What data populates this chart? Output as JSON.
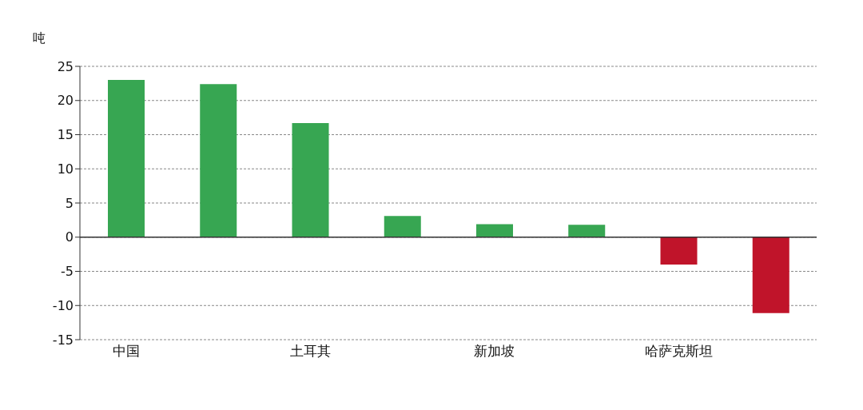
{
  "chart_data": {
    "type": "bar",
    "ylabel": "吨",
    "categories": [
      "中国",
      null,
      "土耳其",
      null,
      "新加坡",
      null,
      "哈萨克斯坦",
      null
    ],
    "values": [
      23,
      22.4,
      16.7,
      3.1,
      1.9,
      1.8,
      -4.0,
      -11.1
    ],
    "colors": [
      "#37a652",
      "#37a652",
      "#37a652",
      "#37a652",
      "#37a652",
      "#37a652",
      "#c0142a",
      "#c0142a"
    ],
    "ylim": [
      -15,
      25
    ],
    "yticks": [
      -15,
      -10,
      -5,
      0,
      5,
      10,
      15,
      20,
      25
    ],
    "grid": "y",
    "legend": false
  }
}
